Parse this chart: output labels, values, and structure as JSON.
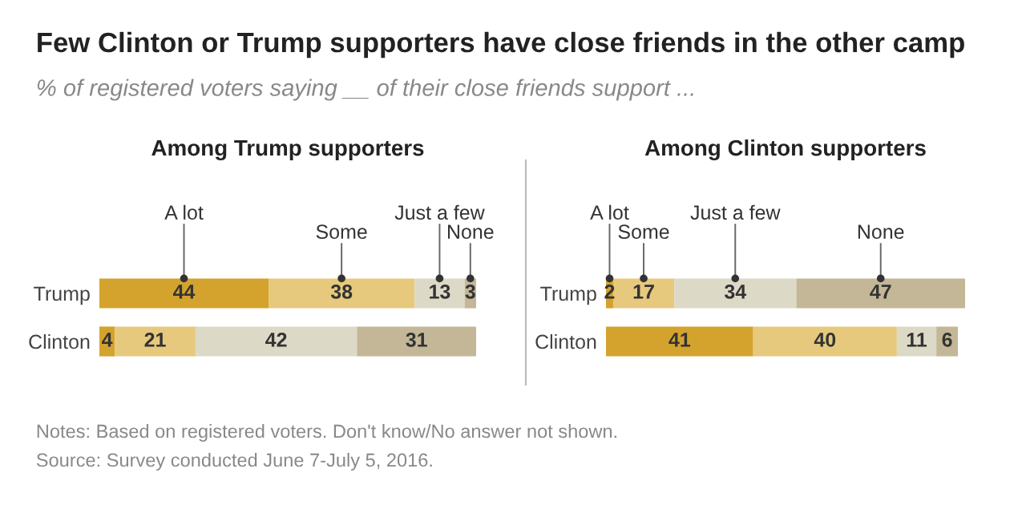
{
  "chart_data": [
    {
      "type": "bar",
      "orientation": "horizontal",
      "stacked": true,
      "title": "Among Trump supporters",
      "categories": [
        "Trump",
        "Clinton"
      ],
      "data_labels": true,
      "tick_labels": "y",
      "legend": false,
      "grid": false,
      "annotations": [
        "Few Clinton or Trump supporters have close friends in the other camp",
        "% of registered voters saying __ of their close friends support ...",
        "Notes: Based on registered voters. Don't know/No answer not shown.",
        "Source: Survey conducted June 7-July 5, 2016."
      ],
      "series": [
        {
          "name": "A lot",
          "color": "#d4a32e",
          "values": [
            44,
            4
          ]
        },
        {
          "name": "Some",
          "color": "#e6c97c",
          "values": [
            38,
            21
          ]
        },
        {
          "name": "Just a few",
          "color": "#ddd9c7",
          "values": [
            13,
            42
          ]
        },
        {
          "name": "None",
          "color": "#c3b797",
          "values": [
            3,
            31
          ]
        }
      ]
    },
    {
      "type": "bar",
      "orientation": "horizontal",
      "stacked": true,
      "title": "Among Clinton supporters",
      "categories": [
        "Trump",
        "Clinton"
      ],
      "data_labels": true,
      "tick_labels": "y",
      "legend": false,
      "grid": false,
      "series": [
        {
          "name": "A lot",
          "color": "#d4a32e",
          "values": [
            2,
            41
          ]
        },
        {
          "name": "Some",
          "color": "#e6c97c",
          "values": [
            17,
            40
          ]
        },
        {
          "name": "Just a few",
          "color": "#ddd9c7",
          "values": [
            34,
            11
          ]
        },
        {
          "name": "None",
          "color": "#c3b797",
          "values": [
            47,
            6
          ]
        }
      ]
    }
  ]
}
